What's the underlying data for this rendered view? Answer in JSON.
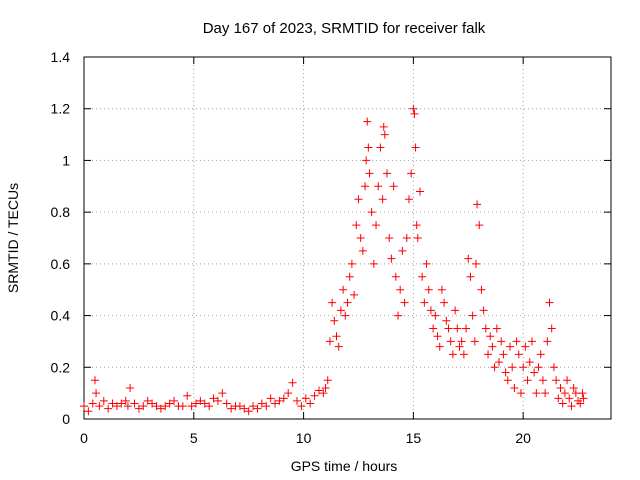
{
  "chart_data": {
    "type": "scatter",
    "title": "Day 167 of 2023, SRMTID for receiver falk",
    "xlabel": "GPS time / hours",
    "ylabel": "SRMTID / TECUs",
    "xlim": [
      0,
      24
    ],
    "ylim": [
      0,
      1.4
    ],
    "x_ticks": [
      0,
      5,
      10,
      15,
      20
    ],
    "x_tick_labels": [
      "0",
      "5",
      "10",
      "15",
      "20"
    ],
    "y_ticks": [
      0,
      0.2,
      0.4,
      0.6,
      0.8,
      1.0,
      1.2,
      1.4
    ],
    "y_tick_labels": [
      "0",
      "0.2",
      "0.4",
      "0.6",
      "0.8",
      "1",
      "1.2",
      "1.4"
    ],
    "grid": true,
    "marker": "+",
    "color": "#ff0000",
    "series": [
      {
        "name": "SRMTID",
        "x": [
          0.0,
          0.2,
          0.4,
          0.5,
          0.55,
          0.7,
          0.9,
          1.1,
          1.3,
          1.5,
          1.7,
          1.9,
          2.0,
          2.1,
          2.3,
          2.5,
          2.7,
          2.9,
          3.1,
          3.3,
          3.5,
          3.7,
          3.9,
          4.1,
          4.3,
          4.5,
          4.7,
          4.9,
          5.1,
          5.3,
          5.5,
          5.7,
          5.9,
          6.1,
          6.3,
          6.5,
          6.7,
          6.9,
          7.1,
          7.3,
          7.5,
          7.7,
          7.9,
          8.1,
          8.3,
          8.5,
          8.7,
          8.9,
          9.1,
          9.3,
          9.5,
          9.7,
          9.9,
          10.1,
          10.3,
          10.5,
          10.7,
          10.9,
          11.0,
          11.1,
          11.2,
          11.3,
          11.4,
          11.5,
          11.6,
          11.7,
          11.8,
          11.9,
          12.0,
          12.1,
          12.2,
          12.3,
          12.4,
          12.5,
          12.6,
          12.7,
          12.8,
          12.85,
          12.9,
          12.95,
          13.0,
          13.1,
          13.2,
          13.3,
          13.4,
          13.5,
          13.6,
          13.65,
          13.7,
          13.8,
          13.9,
          14.0,
          14.1,
          14.2,
          14.3,
          14.4,
          14.5,
          14.6,
          14.7,
          14.8,
          14.9,
          15.0,
          15.05,
          15.1,
          15.15,
          15.2,
          15.3,
          15.4,
          15.5,
          15.6,
          15.7,
          15.8,
          15.9,
          16.0,
          16.1,
          16.2,
          16.3,
          16.4,
          16.5,
          16.6,
          16.7,
          16.8,
          16.9,
          17.0,
          17.1,
          17.2,
          17.3,
          17.4,
          17.5,
          17.6,
          17.7,
          17.8,
          17.85,
          17.9,
          18.0,
          18.1,
          18.2,
          18.3,
          18.4,
          18.5,
          18.6,
          18.7,
          18.8,
          18.9,
          19.0,
          19.1,
          19.2,
          19.3,
          19.4,
          19.5,
          19.6,
          19.7,
          19.8,
          19.9,
          20.0,
          20.1,
          20.2,
          20.3,
          20.4,
          20.5,
          20.6,
          20.7,
          20.8,
          20.9,
          21.0,
          21.1,
          21.2,
          21.3,
          21.4,
          21.5,
          21.6,
          21.7,
          21.8,
          21.9,
          22.0,
          22.1,
          22.2,
          22.3,
          22.4,
          22.5,
          22.6,
          22.7,
          22.75
        ],
        "y": [
          0.05,
          0.03,
          0.06,
          0.15,
          0.1,
          0.05,
          0.07,
          0.04,
          0.06,
          0.05,
          0.06,
          0.07,
          0.05,
          0.12,
          0.06,
          0.04,
          0.05,
          0.07,
          0.06,
          0.05,
          0.04,
          0.05,
          0.06,
          0.07,
          0.05,
          0.05,
          0.09,
          0.05,
          0.06,
          0.07,
          0.06,
          0.05,
          0.08,
          0.07,
          0.1,
          0.06,
          0.04,
          0.05,
          0.05,
          0.04,
          0.03,
          0.05,
          0.04,
          0.06,
          0.05,
          0.08,
          0.06,
          0.07,
          0.08,
          0.1,
          0.14,
          0.07,
          0.05,
          0.08,
          0.06,
          0.09,
          0.11,
          0.1,
          0.12,
          0.15,
          0.3,
          0.45,
          0.38,
          0.32,
          0.28,
          0.42,
          0.5,
          0.4,
          0.45,
          0.55,
          0.6,
          0.48,
          0.75,
          0.85,
          0.7,
          0.65,
          0.9,
          1.0,
          1.15,
          1.05,
          0.95,
          0.8,
          0.6,
          0.75,
          0.9,
          1.05,
          0.85,
          1.13,
          1.1,
          0.95,
          0.7,
          0.62,
          0.9,
          0.55,
          0.4,
          0.5,
          0.65,
          0.45,
          0.7,
          0.85,
          0.95,
          1.2,
          1.18,
          1.05,
          0.75,
          0.7,
          0.88,
          0.55,
          0.45,
          0.6,
          0.5,
          0.42,
          0.35,
          0.4,
          0.32,
          0.28,
          0.5,
          0.45,
          0.38,
          0.35,
          0.3,
          0.25,
          0.42,
          0.35,
          0.28,
          0.3,
          0.25,
          0.35,
          0.62,
          0.55,
          0.4,
          0.3,
          0.6,
          0.83,
          0.75,
          0.5,
          0.42,
          0.35,
          0.25,
          0.32,
          0.28,
          0.2,
          0.35,
          0.22,
          0.3,
          0.25,
          0.18,
          0.15,
          0.28,
          0.2,
          0.12,
          0.3,
          0.25,
          0.1,
          0.2,
          0.28,
          0.15,
          0.22,
          0.3,
          0.18,
          0.1,
          0.2,
          0.25,
          0.15,
          0.1,
          0.3,
          0.45,
          0.35,
          0.2,
          0.15,
          0.08,
          0.12,
          0.06,
          0.1,
          0.15,
          0.08,
          0.05,
          0.12,
          0.1,
          0.07,
          0.06,
          0.1,
          0.08
        ]
      }
    ]
  }
}
